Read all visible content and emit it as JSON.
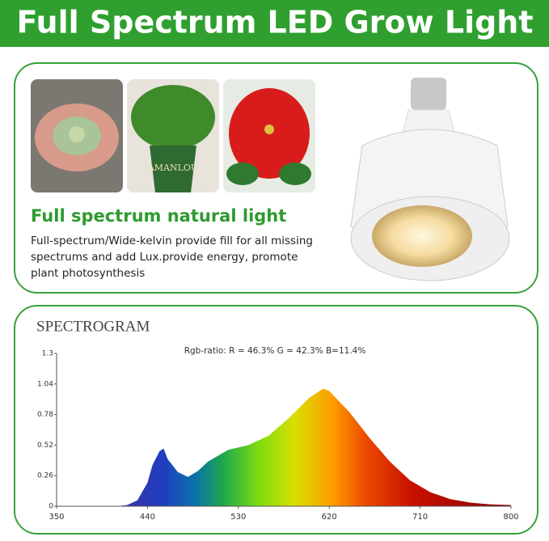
{
  "header": {
    "title": "Full Spectrum LED Grow Light"
  },
  "feature": {
    "pot_label": "AMANLOU",
    "heading": "Full spectrum natural light",
    "lines": [
      "Full-spectrum/Wide-kelvin provide fill for all missing",
      "spectrums and add Lux.provide energy, promote",
      "plant photosynthesis"
    ]
  },
  "chart_data": {
    "type": "area",
    "title": "SPECTROGRAM",
    "annotation": "Rgb-ratio: R = 46.3%  G = 42.3%  B=11.4%",
    "x": [
      410,
      420,
      430,
      440,
      445,
      452,
      456,
      460,
      470,
      480,
      490,
      500,
      520,
      540,
      560,
      580,
      600,
      614,
      620,
      640,
      660,
      680,
      700,
      720,
      740,
      760,
      780,
      800
    ],
    "values": [
      0,
      0.01,
      0.05,
      0.2,
      0.35,
      0.47,
      0.49,
      0.4,
      0.29,
      0.25,
      0.3,
      0.38,
      0.48,
      0.52,
      0.6,
      0.75,
      0.92,
      1.0,
      0.98,
      0.8,
      0.58,
      0.38,
      0.22,
      0.12,
      0.06,
      0.03,
      0.015,
      0.01
    ],
    "xlim": [
      350,
      800
    ],
    "xticks": [
      350,
      440,
      530,
      620,
      710,
      800
    ],
    "ylim": [
      0,
      1.3
    ],
    "yticks": [
      0,
      0.26,
      0.52,
      0.78,
      1.04,
      1.3
    ]
  }
}
